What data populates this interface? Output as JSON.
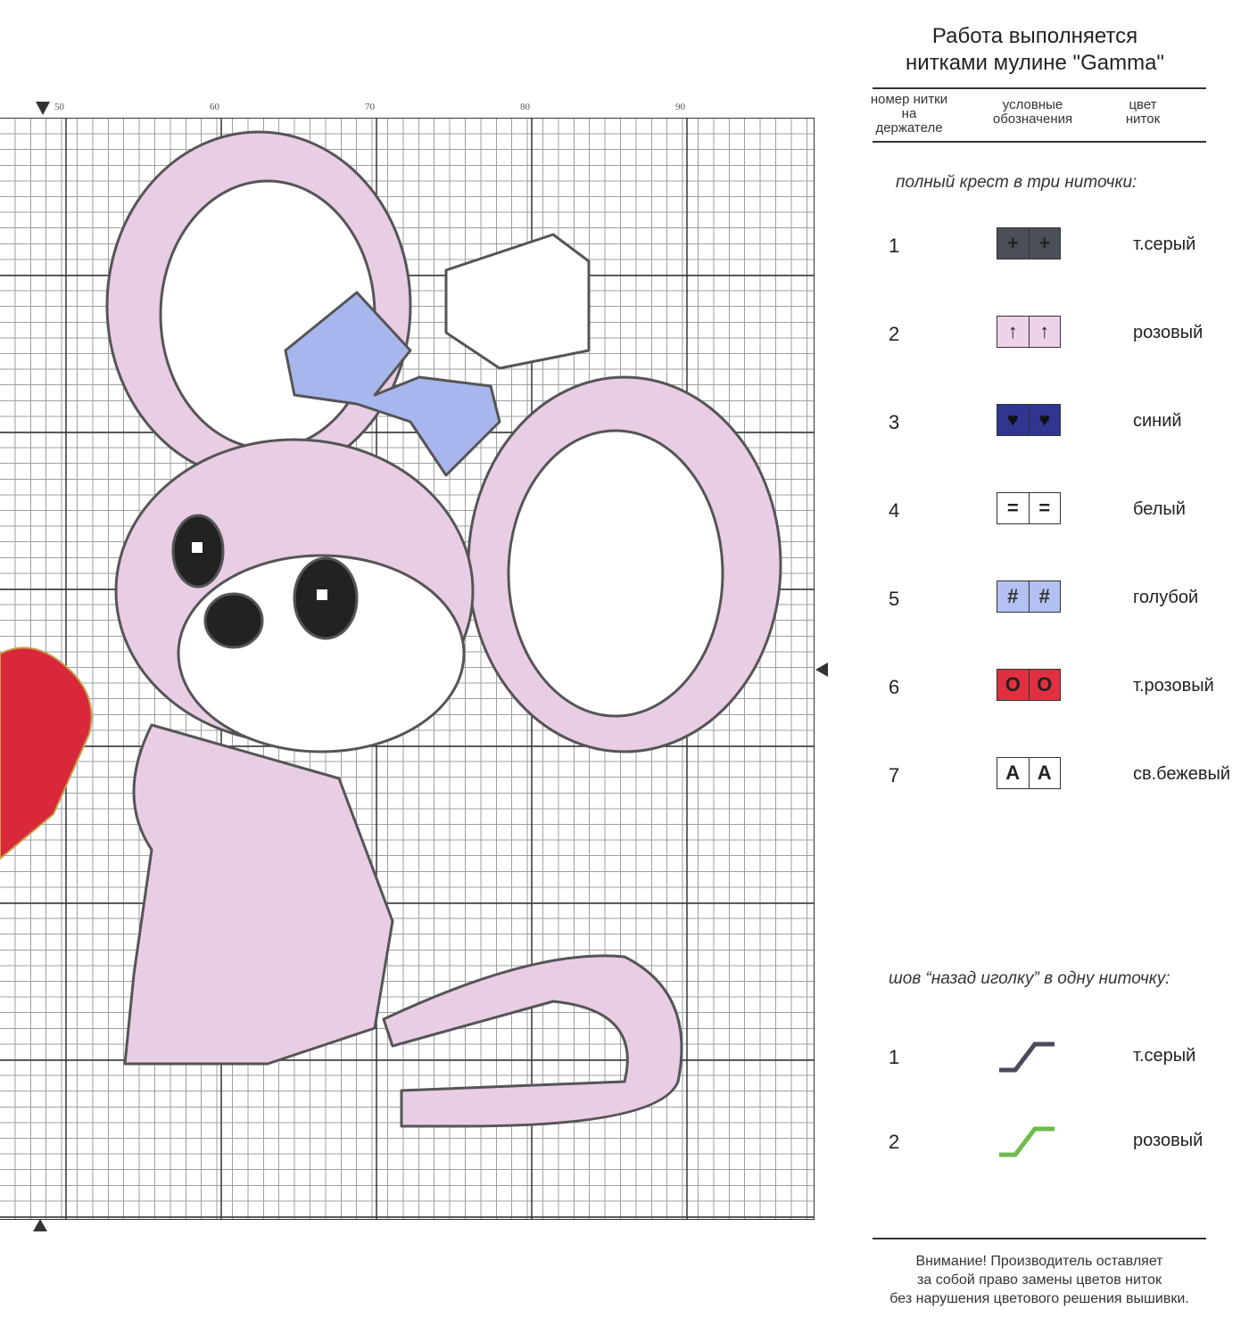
{
  "chart": {
    "column_labels": [
      "50",
      "60",
      "70",
      "80",
      "90"
    ],
    "colors": {
      "pink": "#e9cde4",
      "white": "#ffffff",
      "blue": "#a8b6ee",
      "dark_blue": "#2a2f8a",
      "red": "#d8283a",
      "gray": "#4a4a55",
      "green": "#6dbb4a"
    }
  },
  "legend": {
    "title_line1": "Работа выполняется",
    "title_line2": "нитками мулине \"Gamma\"",
    "col_number": "номер нитки на держателе",
    "col_symbol": "условные обозначения",
    "col_color": "цвет ниток",
    "full_cross_heading": "полный крест в три ниточки:",
    "full_cross": [
      {
        "num": "1",
        "symbol": "+",
        "icon": "plus-icon",
        "fill": "#4a4f58",
        "fg": "#222",
        "name": "т.серый"
      },
      {
        "num": "2",
        "symbol": "↑",
        "icon": "arrow-up-icon",
        "fill": "#ecd3ea",
        "fg": "#222",
        "name": "розовый"
      },
      {
        "num": "3",
        "symbol": "♥",
        "icon": "heart-icon",
        "fill": "#2f3590",
        "fg": "#111",
        "name": "синий"
      },
      {
        "num": "4",
        "symbol": "=",
        "icon": "equals-icon",
        "fill": "#ffffff",
        "fg": "#222",
        "name": "белый"
      },
      {
        "num": "5",
        "symbol": "#",
        "icon": "hash-icon",
        "fill": "#b3c0f2",
        "fg": "#333",
        "name": "голубой"
      },
      {
        "num": "6",
        "symbol": "O",
        "icon": "circle-icon",
        "fill": "#e0303f",
        "fg": "#222",
        "name": "т.розовый"
      },
      {
        "num": "7",
        "symbol": "A",
        "icon": "letter-a-icon",
        "fill": "#ffffff",
        "fg": "#222",
        "name": "св.бежевый"
      }
    ],
    "backstitch_heading": "шов “назад иголку” в одну ниточку:",
    "backstitch": [
      {
        "num": "1",
        "color": "#4a4a5e",
        "name": "т.серый"
      },
      {
        "num": "2",
        "color": "#6dbb4a",
        "name": "розовый"
      }
    ],
    "note_line1": "Внимание! Производитель оставляет",
    "note_line2": "за собой право замены цветов ниток",
    "note_line3": "без нарушения цветового решения вышивки."
  }
}
